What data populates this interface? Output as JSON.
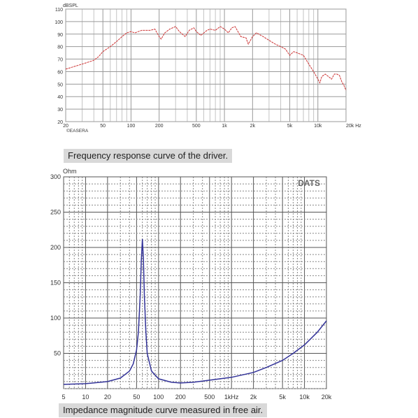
{
  "chart_data": [
    {
      "type": "line",
      "title": "",
      "xlabel": "",
      "ylabel": "dBSPL",
      "xscale": "log",
      "xlim": [
        20,
        20000
      ],
      "ylim": [
        20,
        110
      ],
      "grid": true,
      "watermark": "©EASERA",
      "line_color": "#cc3333",
      "yticks": [
        20,
        30,
        40,
        50,
        60,
        70,
        80,
        90,
        100,
        110
      ],
      "xtick_labels": [
        {
          "value": 20,
          "label": "20"
        },
        {
          "value": 50,
          "label": "50"
        },
        {
          "value": 100,
          "label": "100"
        },
        {
          "value": 200,
          "label": "200"
        },
        {
          "value": 500,
          "label": "500"
        },
        {
          "value": 1000,
          "label": "1k"
        },
        {
          "value": 2000,
          "label": "2k"
        },
        {
          "value": 5000,
          "label": "5k"
        },
        {
          "value": 10000,
          "label": "10k"
        },
        {
          "value": 20000,
          "label": "20k Hz"
        }
      ],
      "series": [
        {
          "name": "",
          "points": [
            [
              20,
              62
            ],
            [
              30,
              66
            ],
            [
              40,
              69
            ],
            [
              45,
              72
            ],
            [
              50,
              76
            ],
            [
              60,
              80
            ],
            [
              70,
              84
            ],
            [
              80,
              88
            ],
            [
              90,
              91
            ],
            [
              100,
              92
            ],
            [
              110,
              91
            ],
            [
              130,
              93
            ],
            [
              160,
              93
            ],
            [
              180,
              94
            ],
            [
              200,
              88
            ],
            [
              210,
              86
            ],
            [
              230,
              91
            ],
            [
              260,
              94
            ],
            [
              300,
              96
            ],
            [
              330,
              92
            ],
            [
              380,
              88
            ],
            [
              420,
              93
            ],
            [
              470,
              95
            ],
            [
              500,
              92
            ],
            [
              560,
              89
            ],
            [
              650,
              93
            ],
            [
              700,
              94
            ],
            [
              800,
              93
            ],
            [
              900,
              96
            ],
            [
              1000,
              94
            ],
            [
              1100,
              91
            ],
            [
              1200,
              95
            ],
            [
              1300,
              96
            ],
            [
              1500,
              88
            ],
            [
              1700,
              87
            ],
            [
              1800,
              82
            ],
            [
              2000,
              88
            ],
            [
              2200,
              91
            ],
            [
              2600,
              88
            ],
            [
              3000,
              85
            ],
            [
              3500,
              82
            ],
            [
              4000,
              80
            ],
            [
              4500,
              78
            ],
            [
              5000,
              73
            ],
            [
              5500,
              76
            ],
            [
              6000,
              75
            ],
            [
              7000,
              73
            ],
            [
              8000,
              66
            ],
            [
              9000,
              60
            ],
            [
              10000,
              54
            ],
            [
              10500,
              51
            ],
            [
              11000,
              56
            ],
            [
              12000,
              58
            ],
            [
              13000,
              56
            ],
            [
              14000,
              54
            ],
            [
              15000,
              58
            ],
            [
              16000,
              58
            ],
            [
              17000,
              57
            ],
            [
              18000,
              52
            ],
            [
              19000,
              49
            ],
            [
              20000,
              45
            ]
          ]
        }
      ]
    },
    {
      "type": "line",
      "title": "",
      "xlabel": "",
      "ylabel": "Ohm",
      "xscale": "log",
      "xlim": [
        5,
        20000
      ],
      "ylim": [
        0,
        300
      ],
      "grid": true,
      "watermark": "DATS",
      "line_color": "#333399",
      "yticks": [
        50,
        100,
        150,
        200,
        250,
        300
      ],
      "xtick_labels": [
        {
          "value": 5,
          "label": "5"
        },
        {
          "value": 10,
          "label": "10"
        },
        {
          "value": 20,
          "label": "20"
        },
        {
          "value": 50,
          "label": "50"
        },
        {
          "value": 100,
          "label": "100"
        },
        {
          "value": 200,
          "label": "200"
        },
        {
          "value": 500,
          "label": "500"
        },
        {
          "value": 1000,
          "label": "1kHz"
        },
        {
          "value": 2000,
          "label": "2k"
        },
        {
          "value": 5000,
          "label": "5k"
        },
        {
          "value": 10000,
          "label": "10k"
        },
        {
          "value": 20000,
          "label": "20k"
        }
      ],
      "series": [
        {
          "name": "",
          "points": [
            [
              5,
              6
            ],
            [
              10,
              7
            ],
            [
              20,
              10
            ],
            [
              30,
              15
            ],
            [
              40,
              25
            ],
            [
              45,
              35
            ],
            [
              50,
              55
            ],
            [
              53,
              80
            ],
            [
              56,
              130
            ],
            [
              58,
              180
            ],
            [
              60,
              212
            ],
            [
              62,
              185
            ],
            [
              64,
              130
            ],
            [
              67,
              80
            ],
            [
              70,
              50
            ],
            [
              80,
              25
            ],
            [
              100,
              14
            ],
            [
              150,
              9
            ],
            [
              200,
              8
            ],
            [
              300,
              9
            ],
            [
              500,
              12
            ],
            [
              1000,
              16
            ],
            [
              2000,
              23
            ],
            [
              3000,
              30
            ],
            [
              5000,
              40
            ],
            [
              7000,
              50
            ],
            [
              10000,
              62
            ],
            [
              15000,
              80
            ],
            [
              20000,
              96
            ]
          ]
        }
      ]
    }
  ],
  "captions": {
    "top": "Frequency response curve of the driver.",
    "bottom": "Impedance magnitude curve measured in free air."
  }
}
